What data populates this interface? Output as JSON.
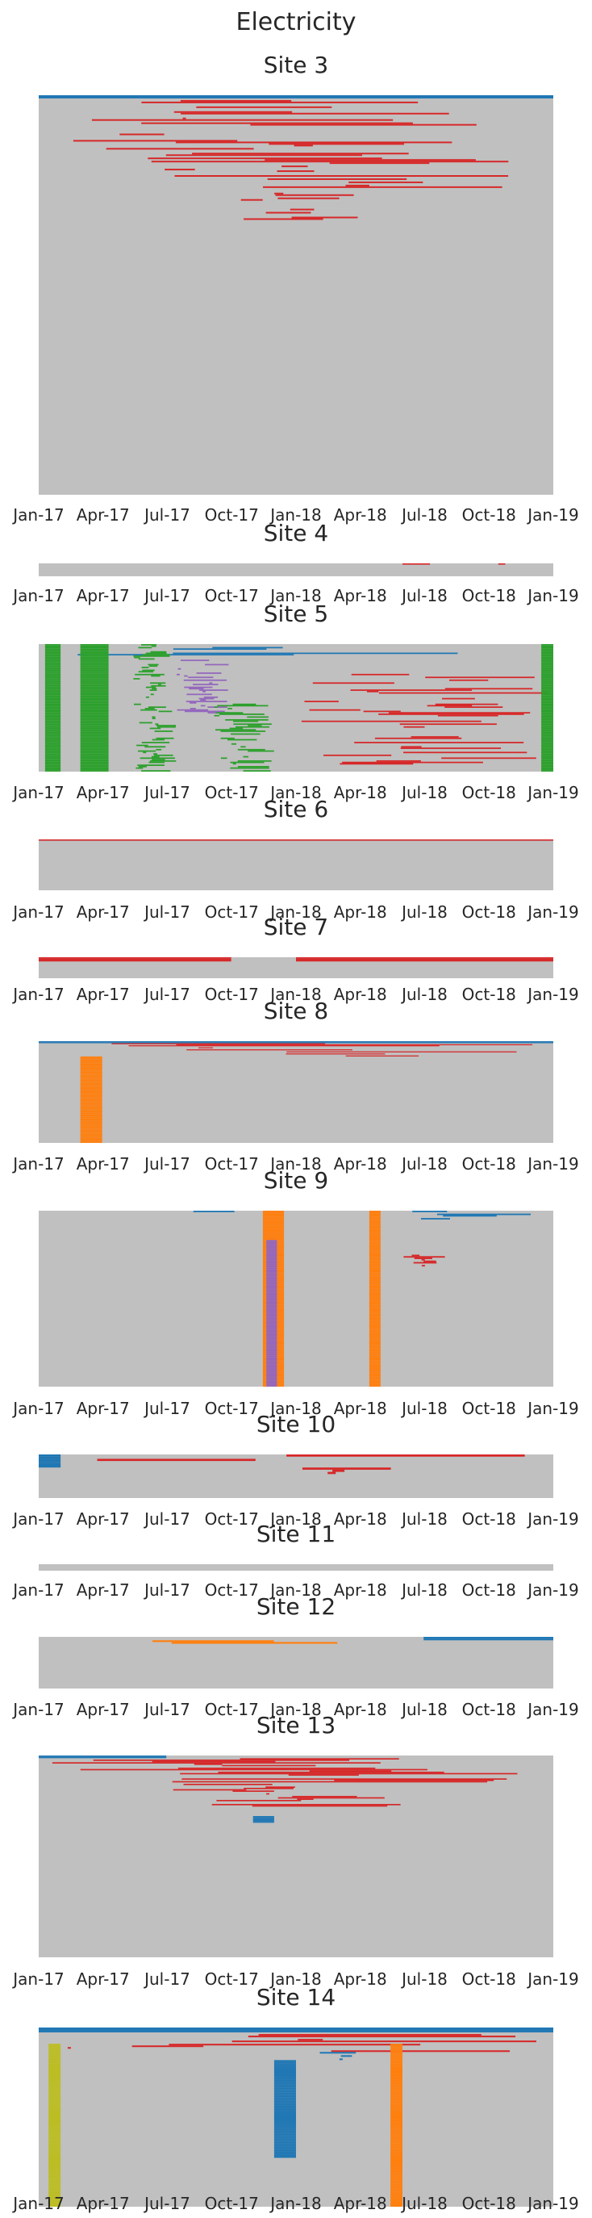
{
  "title": "Electricity",
  "palette": {
    "background": "#c0c0c0",
    "red": "#d62728",
    "blue": "#1f77b4",
    "orange": "#ff7f0e",
    "green": "#2ca02c",
    "purple": "#9467bd",
    "olive": "#bcbd22"
  },
  "chart_data": [
    {
      "type": "heatmap",
      "title": "Site 3",
      "x_ticks": [
        "Jan-17",
        "Apr-17",
        "Jul-17",
        "Oct-17",
        "Jan-18",
        "Apr-18",
        "Jul-18",
        "Oct-18",
        "Jan-19"
      ],
      "xlim": [
        "2017-01-01",
        "2019-01-01"
      ],
      "rows": 250,
      "segments": [
        {
          "color": "blue",
          "x": [
            "2017-01-01",
            "2019-01-01"
          ],
          "rows": [
            0,
            2
          ]
        },
        {
          "color": "red",
          "x": [
            "2017-01-01",
            "2019-01-01"
          ],
          "rows": [
            2,
            20
          ]
        },
        {
          "color": "red",
          "x": [
            "2017-02-01",
            "2018-12-01"
          ],
          "rows": [
            20,
            40
          ]
        },
        {
          "color": "red",
          "x": [
            "2017-06-01",
            "2018-11-01"
          ],
          "rows": [
            40,
            60
          ]
        },
        {
          "color": "red",
          "x": [
            "2017-09-01",
            "2018-04-01"
          ],
          "rows": [
            60,
            80
          ]
        }
      ]
    },
    {
      "type": "heatmap",
      "title": "Site 4",
      "x_ticks": [
        "Jan-17",
        "Apr-17",
        "Jul-17",
        "Oct-17",
        "Jan-18",
        "Apr-18",
        "Jul-18",
        "Oct-18",
        "Jan-19"
      ],
      "xlim": [
        "2017-01-01",
        "2019-01-01"
      ],
      "rows": 10,
      "segments": [
        {
          "color": "red",
          "x": [
            "2018-06-01",
            "2018-07-10"
          ],
          "rows": [
            0,
            1
          ]
        },
        {
          "color": "red",
          "x": [
            "2018-10-15",
            "2018-10-25"
          ],
          "rows": [
            0,
            1
          ]
        }
      ]
    },
    {
      "type": "heatmap",
      "title": "Site 5",
      "x_ticks": [
        "Jan-17",
        "Apr-17",
        "Jul-17",
        "Oct-17",
        "Jan-18",
        "Apr-18",
        "Jul-18",
        "Oct-18",
        "Jan-19"
      ],
      "xlim": [
        "2017-01-01",
        "2019-01-01"
      ],
      "rows": 90,
      "segments": [
        {
          "color": "blue",
          "x": [
            "2017-01-01",
            "2019-01-01"
          ],
          "rows": [
            0,
            8
          ]
        },
        {
          "color": "green",
          "x": [
            "2017-01-10",
            "2017-02-01"
          ],
          "rows": [
            0,
            90
          ]
        },
        {
          "color": "green",
          "x": [
            "2017-03-01",
            "2017-04-10"
          ],
          "rows": [
            0,
            90
          ]
        },
        {
          "color": "green",
          "x": [
            "2017-05-15",
            "2017-07-15"
          ],
          "rows": [
            0,
            90
          ]
        },
        {
          "color": "purple",
          "x": [
            "2017-07-15",
            "2017-10-01"
          ],
          "rows": [
            10,
            50
          ]
        },
        {
          "color": "green",
          "x": [
            "2017-09-01",
            "2017-12-01"
          ],
          "rows": [
            40,
            90
          ]
        },
        {
          "color": "red",
          "x": [
            "2018-01-01",
            "2019-01-01"
          ],
          "rows": [
            20,
            85
          ]
        },
        {
          "color": "green",
          "x": [
            "2018-12-15",
            "2019-01-01"
          ],
          "rows": [
            0,
            90
          ]
        }
      ]
    },
    {
      "type": "heatmap",
      "title": "Site 6",
      "x_ticks": [
        "Jan-17",
        "Apr-17",
        "Jul-17",
        "Oct-17",
        "Jan-18",
        "Apr-18",
        "Jul-18",
        "Oct-18",
        "Jan-19"
      ],
      "xlim": [
        "2017-01-01",
        "2019-01-01"
      ],
      "rows": 40,
      "segments": [
        {
          "color": "red",
          "x": [
            "2017-01-01",
            "2019-01-01"
          ],
          "rows": [
            0,
            1
          ]
        }
      ]
    },
    {
      "type": "heatmap",
      "title": "Site 7",
      "x_ticks": [
        "Jan-17",
        "Apr-17",
        "Jul-17",
        "Oct-17",
        "Jan-18",
        "Apr-18",
        "Jul-18",
        "Oct-18",
        "Jan-19"
      ],
      "xlim": [
        "2017-01-01",
        "2019-01-01"
      ],
      "rows": 15,
      "segments": [
        {
          "color": "red",
          "x": [
            "2017-01-01",
            "2017-10-01"
          ],
          "rows": [
            0,
            3
          ]
        },
        {
          "color": "red",
          "x": [
            "2018-01-01",
            "2019-01-01"
          ],
          "rows": [
            0,
            3
          ]
        }
      ]
    },
    {
      "type": "heatmap",
      "title": "Site 8",
      "x_ticks": [
        "Jan-17",
        "Apr-17",
        "Jul-17",
        "Oct-17",
        "Jan-18",
        "Apr-18",
        "Jul-18",
        "Oct-18",
        "Jan-19"
      ],
      "xlim": [
        "2017-01-01",
        "2019-01-01"
      ],
      "rows": 100,
      "segments": [
        {
          "color": "blue",
          "x": [
            "2017-01-01",
            "2019-01-01"
          ],
          "rows": [
            0,
            2
          ]
        },
        {
          "color": "red",
          "x": [
            "2017-01-01",
            "2019-01-01"
          ],
          "rows": [
            2,
            15
          ]
        },
        {
          "color": "orange",
          "x": [
            "2017-03-01",
            "2017-04-01"
          ],
          "rows": [
            15,
            100
          ]
        }
      ]
    },
    {
      "type": "heatmap",
      "title": "Site 9",
      "x_ticks": [
        "Jan-17",
        "Apr-17",
        "Jul-17",
        "Oct-17",
        "Jan-18",
        "Apr-18",
        "Jul-18",
        "Oct-18",
        "Jan-19"
      ],
      "xlim": [
        "2017-01-01",
        "2019-01-01"
      ],
      "rows": 120,
      "segments": [
        {
          "color": "blue",
          "x": [
            "2017-07-01",
            "2017-11-01"
          ],
          "rows": [
            0,
            4
          ]
        },
        {
          "color": "blue",
          "x": [
            "2018-05-01",
            "2019-01-01"
          ],
          "rows": [
            0,
            6
          ]
        },
        {
          "color": "orange",
          "x": [
            "2017-11-15",
            "2017-12-15"
          ],
          "rows": [
            0,
            120
          ]
        },
        {
          "color": "purple",
          "x": [
            "2017-11-20",
            "2017-12-05"
          ],
          "rows": [
            20,
            120
          ]
        },
        {
          "color": "orange",
          "x": [
            "2018-04-15",
            "2018-05-01"
          ],
          "rows": [
            0,
            120
          ]
        },
        {
          "color": "red",
          "x": [
            "2018-06-01",
            "2018-08-01"
          ],
          "rows": [
            30,
            40
          ]
        }
      ]
    },
    {
      "type": "heatmap",
      "title": "Site 10",
      "x_ticks": [
        "Jan-17",
        "Apr-17",
        "Jul-17",
        "Oct-17",
        "Jan-18",
        "Apr-18",
        "Jul-18",
        "Oct-18",
        "Jan-19"
      ],
      "xlim": [
        "2017-01-01",
        "2019-01-01"
      ],
      "rows": 20,
      "segments": [
        {
          "color": "red",
          "x": [
            "2017-01-01",
            "2019-01-01"
          ],
          "rows": [
            0,
            4
          ]
        },
        {
          "color": "blue",
          "x": [
            "2017-01-01",
            "2017-02-01"
          ],
          "rows": [
            0,
            6
          ]
        },
        {
          "color": "red",
          "x": [
            "2018-01-01",
            "2018-06-01"
          ],
          "rows": [
            6,
            10
          ]
        }
      ]
    },
    {
      "type": "heatmap",
      "title": "Site 11",
      "x_ticks": [
        "Jan-17",
        "Apr-17",
        "Jul-17",
        "Oct-17",
        "Jan-18",
        "Apr-18",
        "Jul-18",
        "Oct-18",
        "Jan-19"
      ],
      "xlim": [
        "2017-01-01",
        "2019-01-01"
      ],
      "rows": 2,
      "segments": []
    },
    {
      "type": "heatmap",
      "title": "Site 12",
      "x_ticks": [
        "Jan-17",
        "Apr-17",
        "Jul-17",
        "Oct-17",
        "Jan-18",
        "Apr-18",
        "Jul-18",
        "Oct-18",
        "Jan-19"
      ],
      "xlim": [
        "2017-01-01",
        "2019-01-01"
      ],
      "rows": 30,
      "segments": [
        {
          "color": "blue",
          "x": [
            "2018-07-01",
            "2019-01-01"
          ],
          "rows": [
            0,
            2
          ]
        },
        {
          "color": "orange",
          "x": [
            "2017-01-01",
            "2019-01-01"
          ],
          "rows": [
            2,
            6
          ]
        }
      ]
    },
    {
      "type": "heatmap",
      "title": "Site 13",
      "x_ticks": [
        "Jan-17",
        "Apr-17",
        "Jul-17",
        "Oct-17",
        "Jan-18",
        "Apr-18",
        "Jul-18",
        "Oct-18",
        "Jan-19"
      ],
      "xlim": [
        "2017-01-01",
        "2019-01-01"
      ],
      "rows": 150,
      "segments": [
        {
          "color": "blue",
          "x": [
            "2017-01-01",
            "2017-07-01"
          ],
          "rows": [
            0,
            2
          ]
        },
        {
          "color": "red",
          "x": [
            "2017-01-01",
            "2019-01-01"
          ],
          "rows": [
            2,
            20
          ]
        },
        {
          "color": "red",
          "x": [
            "2017-06-01",
            "2018-06-01"
          ],
          "rows": [
            20,
            40
          ]
        },
        {
          "color": "blue",
          "x": [
            "2017-11-01",
            "2017-12-01"
          ],
          "rows": [
            45,
            50
          ]
        }
      ]
    },
    {
      "type": "heatmap",
      "title": "Site 14",
      "x_ticks": [
        "Jan-17",
        "Apr-17",
        "Jul-17",
        "Oct-17",
        "Jan-18",
        "Apr-18",
        "Jul-18",
        "Oct-18",
        "Jan-19"
      ],
      "xlim": [
        "2017-01-01",
        "2019-01-01"
      ],
      "rows": 110,
      "segments": [
        {
          "color": "blue",
          "x": [
            "2017-01-01",
            "2019-01-01"
          ],
          "rows": [
            0,
            3
          ]
        },
        {
          "color": "red",
          "x": [
            "2017-01-01",
            "2019-01-01"
          ],
          "rows": [
            3,
            15
          ]
        },
        {
          "color": "blue",
          "x": [
            "2017-12-01",
            "2018-01-01"
          ],
          "rows": [
            20,
            80
          ]
        },
        {
          "color": "blue",
          "x": [
            "2018-02-01",
            "2018-04-01"
          ],
          "rows": [
            15,
            20
          ]
        },
        {
          "color": "olive",
          "x": [
            "2017-01-15",
            "2017-02-01"
          ],
          "rows": [
            10,
            110
          ]
        },
        {
          "color": "orange",
          "x": [
            "2018-05-15",
            "2018-06-01"
          ],
          "rows": [
            10,
            110
          ]
        }
      ]
    }
  ]
}
